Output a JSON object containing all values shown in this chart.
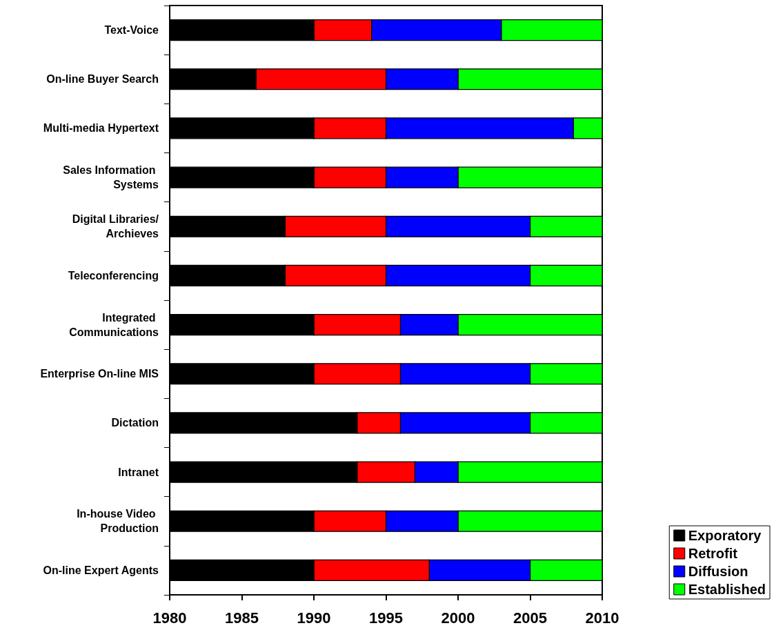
{
  "chart_data": {
    "type": "bar",
    "orientation": "horizontal",
    "categories": [
      "Text-Voice",
      "On-line Buyer Search",
      "Multi-media Hypertext",
      "Sales Information Systems",
      "Digital Libraries/Archieves",
      "Teleconferencing",
      "Integrated Communications",
      "Enterprise On-line MIS",
      "Dictation",
      "Intranet",
      "In-house Video Production",
      "On-line Expert Agents"
    ],
    "series": [
      {
        "name": "Exporatory",
        "color": "#000000",
        "base": [
          1980,
          1980,
          1980,
          1980,
          1980,
          1980,
          1980,
          1980,
          1980,
          1980,
          1980,
          1980
        ],
        "values": [
          10,
          6,
          10,
          10,
          8,
          8,
          10,
          10,
          13,
          13,
          10,
          10
        ]
      },
      {
        "name": "Retrofit",
        "color": "#ff0000",
        "base": [
          1990,
          1986,
          1990,
          1990,
          1988,
          1988,
          1990,
          1990,
          1993,
          1993,
          1990,
          1990
        ],
        "values": [
          4,
          9,
          5,
          5,
          7,
          7,
          6,
          6,
          3,
          4,
          5,
          8
        ]
      },
      {
        "name": "Diffusion",
        "color": "#0000ff",
        "base": [
          1994,
          1995,
          1995,
          1995,
          1995,
          1995,
          1996,
          1996,
          1996,
          1997,
          1995,
          1998
        ],
        "values": [
          9,
          5,
          13,
          5,
          10,
          10,
          4,
          9,
          9,
          3,
          5,
          7
        ]
      },
      {
        "name": "Established",
        "color": "#00ff00",
        "base": [
          2003,
          2000,
          2008,
          2000,
          2005,
          2005,
          2000,
          2005,
          2005,
          2000,
          2000,
          2005
        ],
        "values": [
          7,
          10,
          2,
          10,
          5,
          5,
          10,
          5,
          5,
          10,
          10,
          5
        ]
      }
    ],
    "xlim": [
      1980,
      2010
    ],
    "xticks": [
      1980,
      1985,
      1990,
      1995,
      2000,
      2005,
      2010
    ],
    "grid": false,
    "legend": "bottom right"
  }
}
